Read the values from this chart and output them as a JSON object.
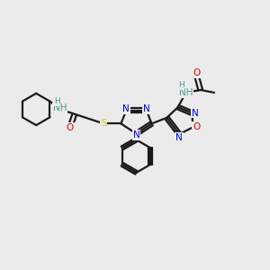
{
  "bg_color": "#ebebeb",
  "atom_colors": {
    "C": "#000000",
    "N": "#0000ee",
    "O": "#ee0000",
    "S": "#cccc00",
    "H": "#4a9a8a"
  },
  "bond_color": "#1a1a1a",
  "bond_width": 1.6,
  "figsize": [
    3.0,
    3.0
  ],
  "dpi": 100
}
